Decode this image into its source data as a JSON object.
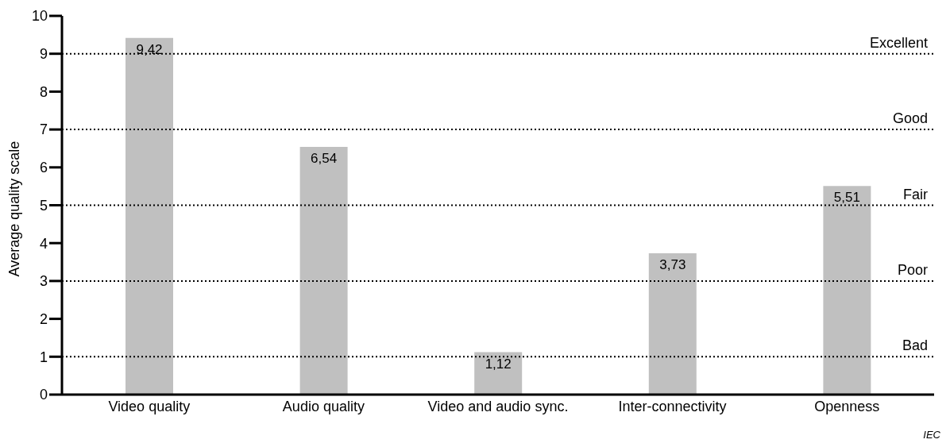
{
  "chart_data": {
    "type": "bar",
    "ylabel": "Average quality scale",
    "categories": [
      "Video quality",
      "Audio quality",
      "Video and audio sync.",
      "Inter-connectivity",
      "Openness"
    ],
    "values": [
      9.42,
      6.54,
      1.12,
      3.73,
      5.51
    ],
    "color": "#c0c0c0",
    "value_labels": [
      "9,42",
      "6,54",
      "1,12",
      "3,73",
      "5,51"
    ],
    "ylim": [
      0,
      10
    ],
    "yticks": [
      0,
      1,
      2,
      3,
      4,
      5,
      6,
      7,
      8,
      9,
      10
    ],
    "grid": false,
    "legend": false,
    "ref_lines": [
      {
        "axis": "y",
        "value": 1,
        "label": "Bad",
        "color": "#000000",
        "line_style": "dotted"
      },
      {
        "axis": "y",
        "value": 3,
        "label": "Poor",
        "color": "#000000",
        "line_style": "dotted"
      },
      {
        "axis": "y",
        "value": 5,
        "label": "Fair",
        "color": "#000000",
        "line_style": "dotted"
      },
      {
        "axis": "y",
        "value": 7,
        "label": "Good",
        "color": "#000000",
        "line_style": "dotted"
      },
      {
        "axis": "y",
        "value": 9,
        "label": "Excellent",
        "color": "#000000",
        "line_style": "dotted"
      }
    ],
    "annotations": [
      "IEC"
    ]
  }
}
